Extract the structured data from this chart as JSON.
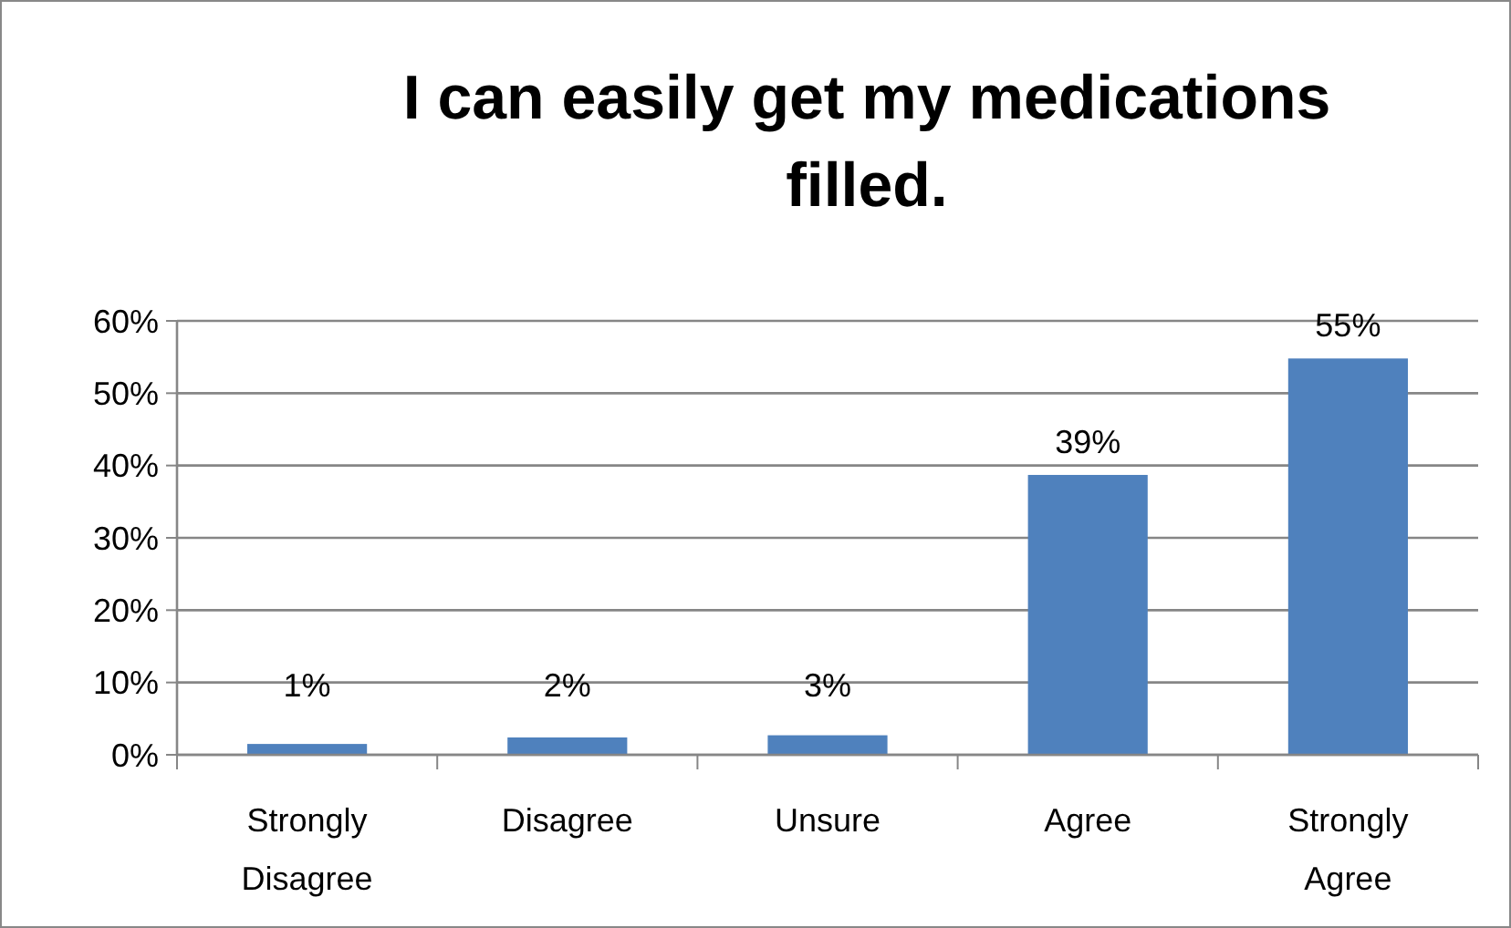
{
  "chart_data": {
    "type": "bar",
    "title": "I can easily get my medications filled.",
    "categories": [
      "Strongly Disagree",
      "Disagree",
      "Unsure",
      "Agree",
      "Strongly Agree"
    ],
    "values": [
      1.5,
      2.4,
      2.7,
      38.7,
      54.8
    ],
    "value_labels": [
      "1%",
      "2%",
      "3%",
      "39%",
      "55%"
    ],
    "color": "#4f81bd",
    "ylim": [
      0,
      60
    ],
    "yticks": [
      {
        "value": 0,
        "label": "0%"
      },
      {
        "value": 10,
        "label": "10%"
      },
      {
        "value": 20,
        "label": "20%"
      },
      {
        "value": 30,
        "label": "30%"
      },
      {
        "value": 40,
        "label": "40%"
      },
      {
        "value": 50,
        "label": "50%"
      },
      {
        "value": 60,
        "label": "60%"
      }
    ],
    "grid": "y"
  }
}
